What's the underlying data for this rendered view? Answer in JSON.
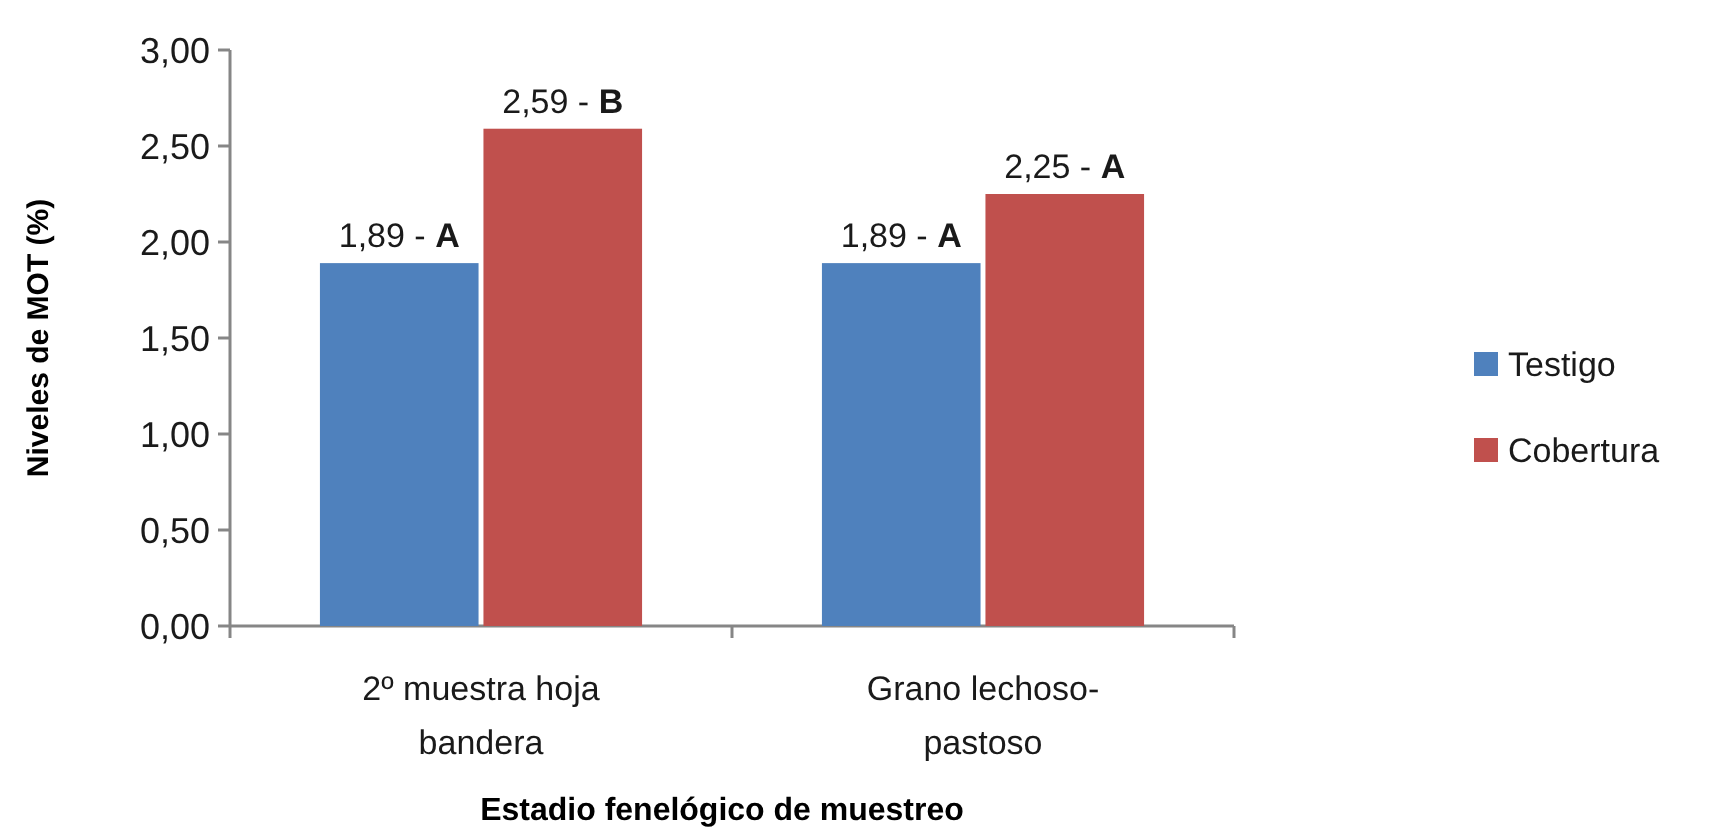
{
  "chart_data": {
    "type": "bar",
    "xlabel": "Estadio fenelógico de muestreo",
    "ylabel": "Niveles de MOT (%)",
    "categories": [
      "2º muestra hoja bandera",
      "Grano lechoso-pastoso"
    ],
    "series": [
      {
        "name": "Testigo",
        "color": "#4f81bd",
        "values": [
          1.89,
          1.89
        ],
        "value_labels": [
          "1,89 - A",
          "1,89 - A"
        ]
      },
      {
        "name": "Cobertura",
        "color": "#c0504d",
        "values": [
          2.59,
          2.25
        ],
        "value_labels": [
          "2,59 - B",
          "2,25 - A"
        ]
      }
    ],
    "ylim": [
      0,
      3
    ],
    "yticks": [
      {
        "value": 0,
        "label": "0,00"
      },
      {
        "value": 0.5,
        "label": "0,50"
      },
      {
        "value": 1,
        "label": "1,00"
      },
      {
        "value": 1.5,
        "label": "1,50"
      },
      {
        "value": 2,
        "label": "2,00"
      },
      {
        "value": 2.5,
        "label": "2,50"
      },
      {
        "value": 3,
        "label": "3,00"
      }
    ],
    "legend": "right"
  }
}
